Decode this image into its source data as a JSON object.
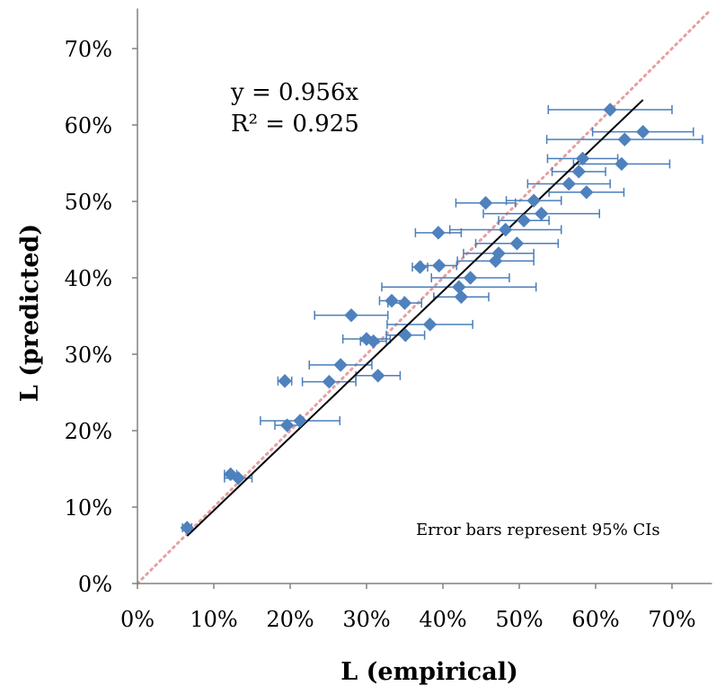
{
  "chart_data": {
    "type": "scatter",
    "xlabel": "L (empirical)",
    "ylabel": "L (predicted)",
    "xlim": [
      0,
      75
    ],
    "ylim": [
      0,
      75
    ],
    "x_ticks": [
      "0%",
      "10%",
      "20%",
      "30%",
      "40%",
      "50%",
      "60%",
      "70%"
    ],
    "y_ticks": [
      "0%",
      "10%",
      "20%",
      "30%",
      "40%",
      "50%",
      "60%",
      "70%"
    ],
    "tick_values": [
      0,
      10,
      20,
      30,
      40,
      50,
      60,
      70
    ],
    "annotations": {
      "equation": "y = 0.956x",
      "r_squared": "R² = 0.925",
      "error_note": "Error bars represent 95% CIs"
    },
    "series": [
      {
        "marker": "diamond",
        "color": "#4f81bd",
        "points": [
          {
            "x": 6.5,
            "y": 7.3,
            "err": 0.6
          },
          {
            "x": 12.2,
            "y": 14.3,
            "err": 0.8
          },
          {
            "x": 13.2,
            "y": 13.8,
            "err": 1.8
          },
          {
            "x": 19.6,
            "y": 20.7,
            "err": 1.6
          },
          {
            "x": 21.3,
            "y": 21.3,
            "err": 5.2
          },
          {
            "x": 19.3,
            "y": 26.5,
            "err": 0.9
          },
          {
            "x": 25.1,
            "y": 26.4,
            "err": 3.5
          },
          {
            "x": 31.5,
            "y": 27.2,
            "err": 2.9
          },
          {
            "x": 26.6,
            "y": 28.6,
            "err": 4.1
          },
          {
            "x": 30.0,
            "y": 32.0,
            "err": 3.1
          },
          {
            "x": 30.9,
            "y": 31.7,
            "err": 1.7
          },
          {
            "x": 35.1,
            "y": 32.5,
            "err": 2.5
          },
          {
            "x": 38.3,
            "y": 33.9,
            "err": 5.6
          },
          {
            "x": 28.0,
            "y": 35.1,
            "err": 4.8
          },
          {
            "x": 33.3,
            "y": 37.0,
            "err": 1.6
          },
          {
            "x": 35.0,
            "y": 36.7,
            "err": 2.2
          },
          {
            "x": 42.4,
            "y": 37.5,
            "err": 3.6
          },
          {
            "x": 42.1,
            "y": 38.8,
            "err": 10.1
          },
          {
            "x": 43.6,
            "y": 40.0,
            "err": 5.1
          },
          {
            "x": 37.0,
            "y": 41.4,
            "err": 1.0
          },
          {
            "x": 39.5,
            "y": 41.6,
            "err": 2.3
          },
          {
            "x": 39.4,
            "y": 45.9,
            "err": 3.0
          },
          {
            "x": 47.3,
            "y": 43.2,
            "err": 4.6
          },
          {
            "x": 46.9,
            "y": 42.2,
            "err": 5.0
          },
          {
            "x": 49.7,
            "y": 44.5,
            "err": 5.4
          },
          {
            "x": 48.2,
            "y": 46.3,
            "err": 7.3
          },
          {
            "x": 45.6,
            "y": 49.8,
            "err": 3.9
          },
          {
            "x": 50.6,
            "y": 47.5,
            "err": 3.3
          },
          {
            "x": 52.9,
            "y": 48.4,
            "err": 7.6
          },
          {
            "x": 51.9,
            "y": 50.1,
            "err": 3.6
          },
          {
            "x": 56.5,
            "y": 52.3,
            "err": 5.4
          },
          {
            "x": 58.8,
            "y": 51.2,
            "err": 4.9
          },
          {
            "x": 57.8,
            "y": 53.9,
            "err": 3.5
          },
          {
            "x": 58.3,
            "y": 55.6,
            "err": 4.6
          },
          {
            "x": 63.4,
            "y": 54.9,
            "err": 6.3
          },
          {
            "x": 63.8,
            "y": 58.1,
            "err": 10.2
          },
          {
            "x": 66.2,
            "y": 59.1,
            "err": 6.6
          },
          {
            "x": 61.9,
            "y": 62.0,
            "err": 8.1
          }
        ]
      }
    ],
    "trendline": {
      "slope": 0.956,
      "x_range": [
        6.5,
        66.2
      ],
      "color": "#000000"
    },
    "reference_line": {
      "slope": 1,
      "style": "dotted",
      "color": "#e6a0a0"
    }
  }
}
